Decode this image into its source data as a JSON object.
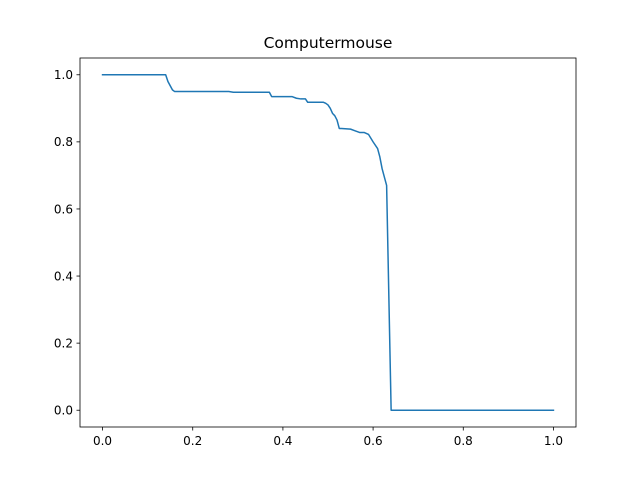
{
  "chart_data": {
    "type": "line",
    "title": "Computermouse",
    "xlabel": "",
    "ylabel": "",
    "xlim": [
      -0.05,
      1.05
    ],
    "ylim": [
      -0.05,
      1.05
    ],
    "grid": false,
    "x_ticks": [
      0.0,
      0.2,
      0.4,
      0.6,
      0.8,
      1.0
    ],
    "x_tick_labels": [
      "0.0",
      "0.2",
      "0.4",
      "0.6",
      "0.8",
      "1.0"
    ],
    "y_ticks": [
      0.0,
      0.2,
      0.4,
      0.6,
      0.8,
      1.0
    ],
    "y_tick_labels": [
      "0.0",
      "0.2",
      "0.4",
      "0.6",
      "0.8",
      "1.0"
    ],
    "series": [
      {
        "color": "#1f77b4",
        "x": [
          0.0,
          0.14,
          0.145,
          0.155,
          0.16,
          0.28,
          0.29,
          0.37,
          0.375,
          0.42,
          0.43,
          0.44,
          0.45,
          0.455,
          0.49,
          0.495,
          0.5,
          0.505,
          0.51,
          0.515,
          0.52,
          0.525,
          0.53,
          0.55,
          0.56,
          0.57,
          0.58,
          0.59,
          0.6,
          0.61,
          0.615,
          0.62,
          0.625,
          0.63,
          0.64,
          0.7,
          1.0
        ],
        "y": [
          1.0,
          1.0,
          0.98,
          0.955,
          0.95,
          0.95,
          0.948,
          0.948,
          0.935,
          0.935,
          0.93,
          0.928,
          0.928,
          0.918,
          0.918,
          0.915,
          0.91,
          0.9,
          0.885,
          0.878,
          0.865,
          0.84,
          0.84,
          0.838,
          0.833,
          0.828,
          0.828,
          0.822,
          0.8,
          0.78,
          0.755,
          0.72,
          0.695,
          0.67,
          0.0,
          0.0,
          0.0
        ]
      }
    ]
  }
}
